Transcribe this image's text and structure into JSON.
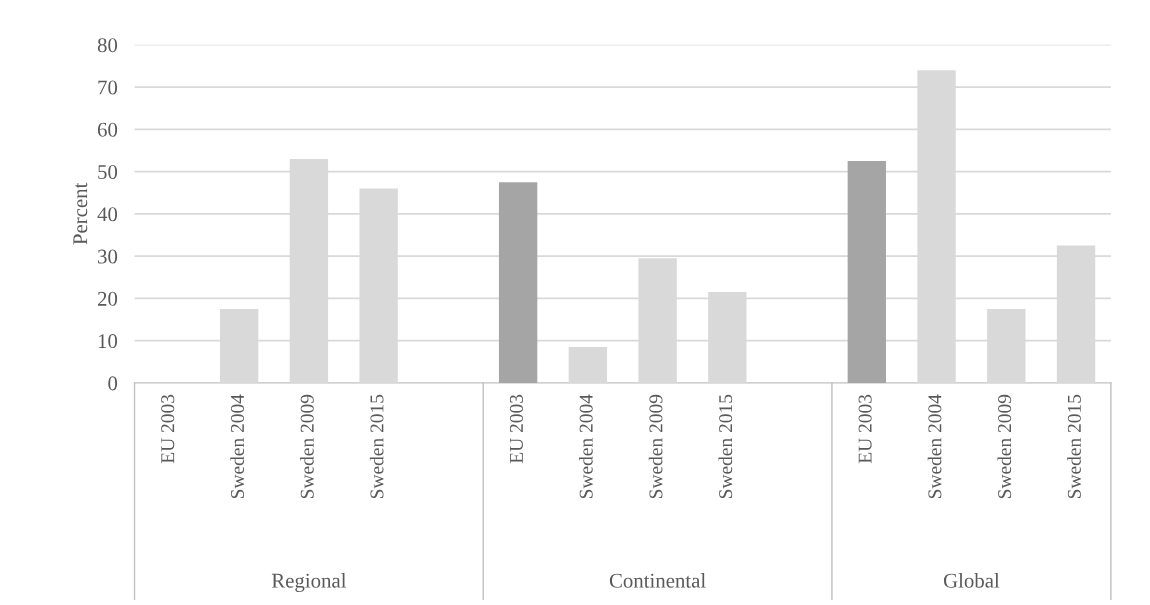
{
  "chart_data": {
    "type": "bar",
    "ylabel": "Percent",
    "categories": [
      "EU 2003",
      "Sweden 2004",
      "Sweden 2009",
      "Sweden 2015",
      null,
      "EU 2003",
      "Sweden 2004",
      "Sweden 2009",
      "Sweden 2015",
      null,
      "EU 2003",
      "Sweden 2004",
      "Sweden 2009",
      "Sweden 2015"
    ],
    "values": [
      0,
      17.5,
      53,
      46,
      null,
      47.5,
      8.5,
      29.5,
      21.5,
      null,
      52.5,
      74,
      17.5,
      32.5
    ],
    "colors": [
      "#a5a5a5",
      "#d9d9d9",
      "#d9d9d9",
      "#d9d9d9",
      "#d9d9d9",
      "#a5a5a5",
      "#d9d9d9",
      "#d9d9d9",
      "#d9d9d9",
      "#d9d9d9",
      "#a5a5a5",
      "#d9d9d9",
      "#d9d9d9",
      "#d9d9d9"
    ],
    "ylim": [
      0,
      80
    ],
    "yticks": [
      0,
      10,
      20,
      30,
      40,
      50,
      60,
      70,
      80
    ],
    "grid": "y",
    "annotations": [
      "Regional",
      "Continental",
      "Global"
    ]
  }
}
